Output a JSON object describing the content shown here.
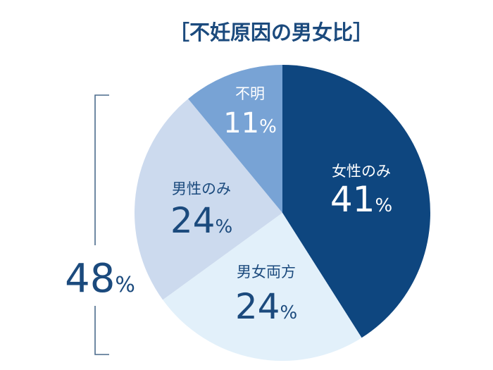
{
  "chart_data": {
    "type": "pie",
    "title": "［不妊原因の男女比］",
    "start_angle": "12 o'clock",
    "direction": "clockwise",
    "slices": [
      {
        "label": "女性のみ",
        "value": 41,
        "display": "41",
        "color": "#0e467f",
        "text_color": "#ffffff"
      },
      {
        "label": "男女両方",
        "value": 24,
        "display": "24",
        "color": "#e2f0fa",
        "text_color": "#1b4a7d"
      },
      {
        "label": "男性のみ",
        "value": 24,
        "display": "24",
        "color": "#ccdaee",
        "text_color": "#1b4a7d"
      },
      {
        "label": "不明",
        "value": 11,
        "display": "11",
        "color": "#78a3d5",
        "text_color": "#ffffff"
      }
    ],
    "unit": "%",
    "bracket_annotation": {
      "value": "48",
      "unit": "%",
      "spans": [
        "男女両方",
        "男性のみ"
      ],
      "color": "#1b4a7d"
    }
  }
}
